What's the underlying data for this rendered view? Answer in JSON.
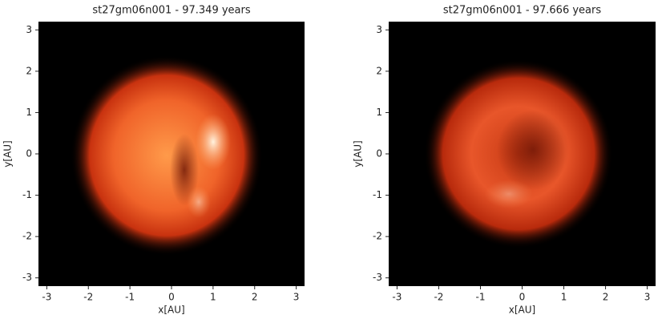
{
  "chart_data": [
    {
      "type": "image",
      "title": "st27gm06n001 - 97.349 years",
      "xlabel": "x[AU]",
      "ylabel": "y[AU]",
      "xlim": [
        -3.2,
        3.2
      ],
      "ylim": [
        -3.2,
        3.2
      ],
      "xticks": [
        -3,
        -2,
        -1,
        0,
        1,
        2,
        3
      ],
      "yticks": [
        -3,
        -2,
        -1,
        0,
        1,
        2,
        3
      ]
    },
    {
      "type": "image",
      "title": "st27gm06n001 - 97.666 years",
      "xlabel": "x[AU]",
      "ylabel": "y[AU]",
      "xlim": [
        -3.2,
        3.2
      ],
      "ylim": [
        -3.2,
        3.2
      ],
      "xticks": [
        -3,
        -2,
        -1,
        0,
        1,
        2,
        3
      ],
      "yticks": [
        -3,
        -2,
        -1,
        0,
        1,
        2,
        3
      ]
    }
  ]
}
